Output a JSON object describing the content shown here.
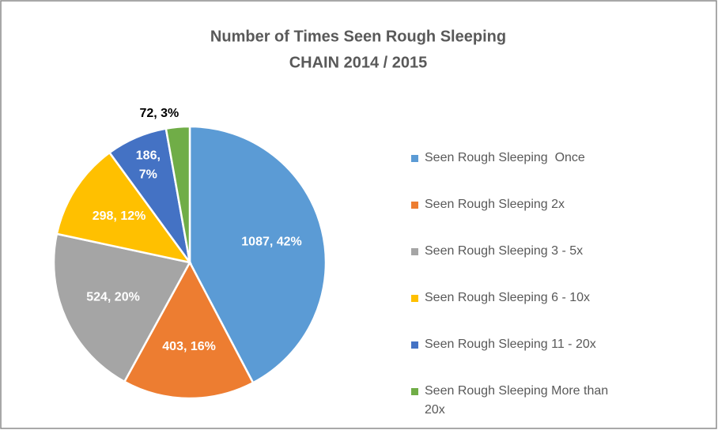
{
  "chart_data": {
    "type": "pie",
    "title": "Number of Times Seen Rough Sleeping",
    "subtitle": "CHAIN 2014 / 2015",
    "categories": [
      "Seen Rough Sleeping  Once",
      "Seen Rough Sleeping 2x",
      "Seen Rough Sleeping 3 - 5x",
      "Seen Rough Sleeping 6 - 10x",
      "Seen Rough Sleeping 11 - 20x",
      "Seen Rough Sleeping More than 20x"
    ],
    "values": [
      1087,
      403,
      524,
      298,
      186,
      72
    ],
    "value_labels": [
      "1087, 42%",
      "403, 16%",
      "524, 20%",
      "298, 12%",
      "186, 7%",
      "72, 3%"
    ],
    "colors": [
      "#5B9BD5",
      "#ED7D31",
      "#A5A5A5",
      "#FFC000",
      "#4472C4",
      "#70AD47"
    ],
    "legend": "right"
  }
}
